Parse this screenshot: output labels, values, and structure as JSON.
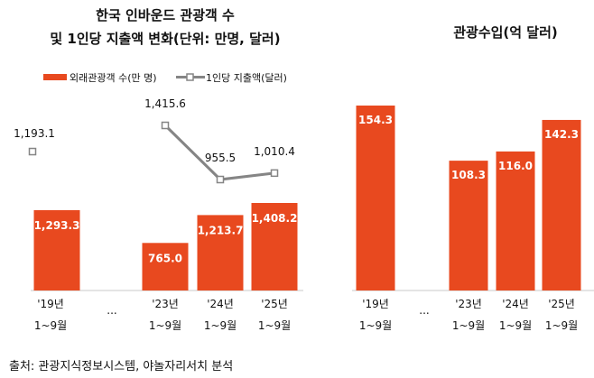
{
  "colors": {
    "bar": "#E8491F",
    "line": "#858585",
    "axis": "#C8C8C8",
    "text": "#111111"
  },
  "chart_data": [
    {
      "type": "bar+line",
      "title_lines": [
        "한국 인바운드 관광객 수",
        "및 1인당 지출액 변화(단위: 만명, 달러)"
      ],
      "legend": {
        "placement": "top",
        "bar_label": "외래관광객 수(만 명)",
        "line_label": "1인당 지출액(달러)"
      },
      "categories": [
        [
          "'19년",
          "1~9월"
        ],
        [
          "...",
          ""
        ],
        [
          "'23년",
          "1~9월"
        ],
        [
          "'24년",
          "1~9월"
        ],
        [
          "'25년",
          "1~9월"
        ]
      ],
      "series": [
        {
          "name": "외래관광객 수(만 명)",
          "type": "bar",
          "values": [
            1293.3,
            null,
            765.0,
            1213.7,
            1408.2
          ],
          "labels": [
            "1,293.3",
            null,
            "765.0",
            "1,213.7",
            "1,408.2"
          ]
        },
        {
          "name": "1인당 지출액(달러)",
          "type": "line",
          "values": [
            1193.1,
            null,
            1415.6,
            955.5,
            1010.4
          ],
          "labels": [
            "1,193.1",
            null,
            "1,415.6",
            "955.5",
            "1,010.4"
          ]
        }
      ]
    },
    {
      "type": "bar",
      "title_lines": [
        "관광수입(억 달러)"
      ],
      "categories": [
        [
          "'19년",
          "1~9월"
        ],
        [
          "...",
          ""
        ],
        [
          "'23년",
          "1~9월"
        ],
        [
          "'24년",
          "1~9월"
        ],
        [
          "'25년",
          "1~9월"
        ]
      ],
      "values": [
        154.3,
        null,
        108.3,
        116.0,
        142.3
      ],
      "labels": [
        "154.3",
        null,
        "108.3",
        "116.0",
        "142.3"
      ]
    }
  ],
  "source": "출처: 관광지식정보시스템, 야놀자리서치 분석"
}
